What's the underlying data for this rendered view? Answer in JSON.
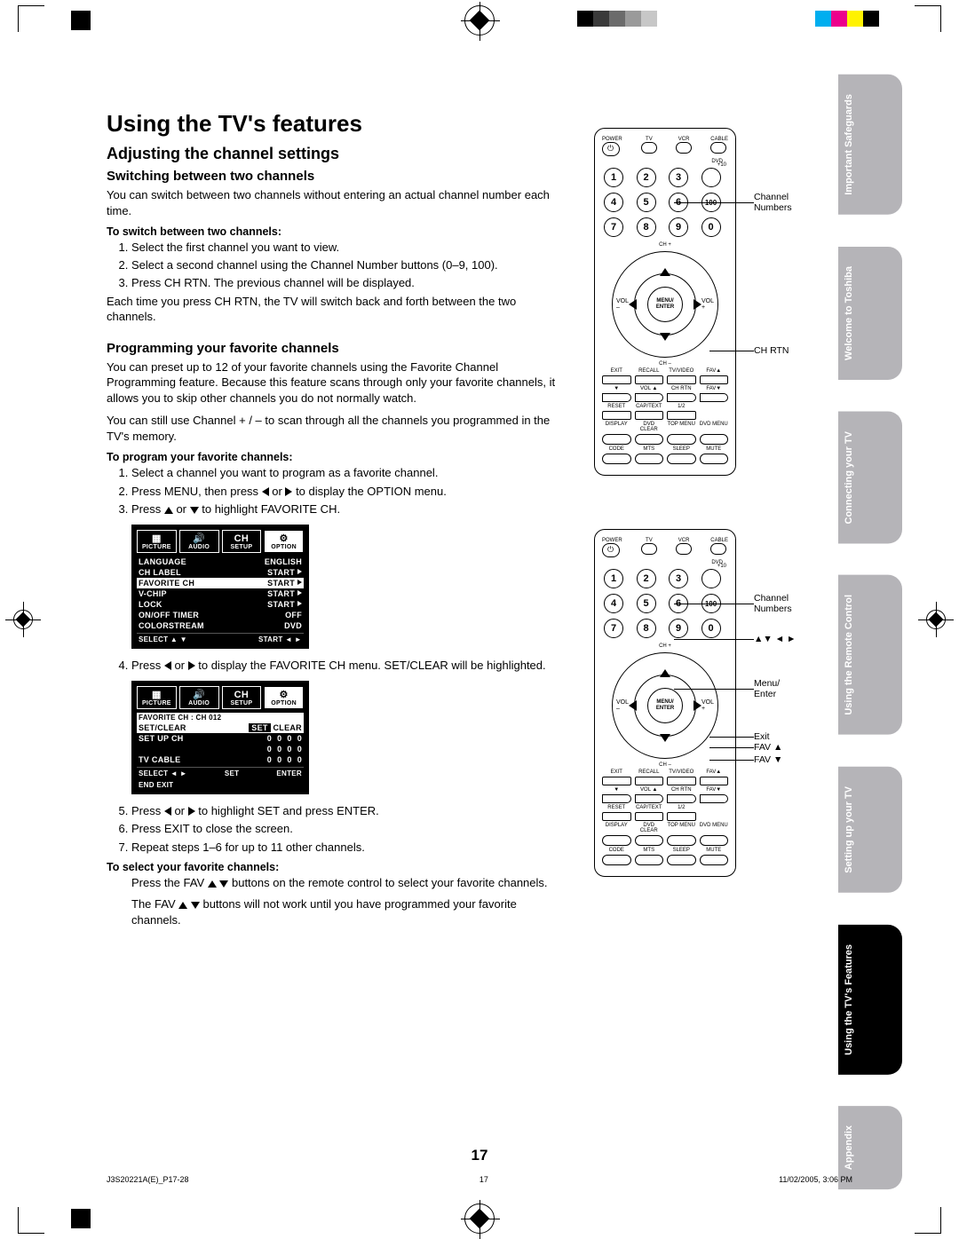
{
  "reg": {
    "colorbar": [
      "#00aeef",
      "#ec008c",
      "#fff200",
      "#000000"
    ],
    "halftone": [
      "#000000",
      "#3a3a3a",
      "#6b6b6b",
      "#9a9a9a",
      "#c7c7c7"
    ]
  },
  "page_number": "17",
  "footer": {
    "doc_id": "J3S20221A(E)_P17-28",
    "page": "17",
    "timestamp": "11/02/2005, 3:06 PM"
  },
  "heading_main": "Using the TV's features",
  "heading_adjust": "Adjusting the channel settings",
  "sec_switch": {
    "h3": "Switching between two channels",
    "intro": "You can switch between two channels without entering an actual channel number each time.",
    "lead": "To switch between two channels:",
    "steps": [
      "Select the first channel you want to view.",
      "Select a second channel using the Channel Number buttons (0–9, 100).",
      "Press CH RTN. The previous channel will be displayed."
    ],
    "outro": "Each time you press CH RTN, the TV will switch back and forth between the two channels."
  },
  "sec_fav": {
    "h3": "Programming your favorite channels",
    "p1": "You can preset up to 12 of your favorite channels using the Favorite Channel Programming feature. Because this feature scans through only your favorite channels, it allows you to skip other channels you do not normally watch.",
    "p2": "You can still use Channel + / – to scan through all the channels you programmed in the TV's memory.",
    "lead": "To program your favorite channels:",
    "step1": "Select a channel you want to program as a favorite channel.",
    "step2_a": "Press MENU, then press ",
    "step2_b": " or ",
    "step2_c": " to display the OPTION menu.",
    "step3_a": "Press ",
    "step3_b": " or ",
    "step3_c": " to highlight FAVORITE CH.",
    "step4_a": "Press ",
    "step4_b": " or ",
    "step4_c": " to display the FAVORITE CH menu. SET/CLEAR will be highlighted.",
    "step5_a": "Press ",
    "step5_b": " or ",
    "step5_c": " to highlight SET and press ENTER.",
    "step6": "Press EXIT to close the screen.",
    "step7": "Repeat steps 1–6 for up to 11 other channels.",
    "select_lead": "To select your favorite channels:",
    "select_p1_a": "Press the FAV ",
    "select_p1_b": " ",
    "select_p1_c": " buttons on the remote control to select your favorite channels.",
    "select_p2_a": "The FAV ",
    "select_p2_b": " ",
    "select_p2_c": " buttons will not work until you have programmed your favorite channels."
  },
  "osd1": {
    "tabs": [
      "PICTURE",
      "AUDIO",
      "SETUP",
      "OPTION"
    ],
    "active_tab": 3,
    "tab_option_label": "OPTION",
    "tab_option_mark": "CH",
    "rows": [
      {
        "l": "LANGUAGE",
        "r": "ENGLISH"
      },
      {
        "l": "CH LABEL",
        "r": "START",
        "arrow": true
      },
      {
        "l": "FAVORITE CH",
        "r": "START",
        "arrow": true,
        "hl": true
      },
      {
        "l": "V-CHIP",
        "r": "START",
        "arrow": true
      },
      {
        "l": "LOCK",
        "r": "START",
        "arrow": true
      },
      {
        "l": "ON/OFF TIMER",
        "r": "OFF"
      },
      {
        "l": "COLORSTREAM",
        "r": "DVD"
      }
    ],
    "foot_l": "SELECT  ▲ ▼",
    "foot_r": "START       ◄ ►"
  },
  "osd2": {
    "tabs": [
      "PICTURE",
      "AUDIO",
      "SETUP",
      "OPTION"
    ],
    "active_tab": 3,
    "title": "FAVORITE CH : CH 012",
    "row_hl_l": "SET/CLEAR",
    "row_hl_r": "SET CLEAR",
    "rows": [
      {
        "l": "SET UP CH",
        "c": [
          "0",
          "0",
          "0",
          "0"
        ]
      },
      {
        "l": "",
        "c": [
          "0",
          "0",
          "0",
          "0"
        ]
      },
      {
        "l": "TV CABLE",
        "c": [
          "0",
          "0",
          "0",
          "0"
        ]
      }
    ],
    "foot_l": "SELECT  ◄ ►",
    "foot_m": "SET",
    "foot_r": "ENTER",
    "foot_end": "END        EXIT"
  },
  "remote_labels": {
    "power": "POWER",
    "tv": "TV",
    "vcr": "VCR",
    "cable": "CABLE",
    "dvd": "DVD",
    "plus10": "+10",
    "menu_enter": "MENU/\nENTER",
    "vol": "VOL",
    "chp": "CH +",
    "chm": "CH –",
    "exit": "EXIT",
    "recall": "RECALL",
    "tvvideo": "TV/VIDEO",
    "favu": "FAV▲",
    "down": "▼",
    "volu": "VOL ▲",
    "chrtn": "CH RTN",
    "favd": "FAV▼",
    "reset": "RESET",
    "captext": "CAP/TEXT",
    "half": "1/2",
    "display": "DISPLAY",
    "dvdclear": "DVD CLEAR",
    "topmenu": "TOP MENU",
    "dvdmenu": "DVD MENU",
    "code": "CODE",
    "mts": "MTS",
    "sleep": "SLEEP",
    "mute": "MUTE"
  },
  "callouts1": {
    "ch_numbers": "Channel\nNumbers",
    "chrtn": "CH RTN"
  },
  "callouts2": {
    "ch_numbers": "Channel\nNumbers",
    "arrows": "▲▼ ◄ ►",
    "menu_enter": "Menu/\nEnter",
    "exit": "Exit",
    "favu": "FAV ▲",
    "favd": "FAV ▼"
  },
  "side_tabs": [
    {
      "l": "Important\nSafeguards",
      "active": false
    },
    {
      "l": "Welcome to\nToshiba",
      "active": false
    },
    {
      "l": "Connecting\nyour TV",
      "active": false
    },
    {
      "l": "Using the\nRemote Control",
      "active": false
    },
    {
      "l": "Setting up\nyour TV",
      "active": false
    },
    {
      "l": "Using the TV's\nFeatures",
      "active": true
    },
    {
      "l": "Appendix",
      "active": false
    }
  ]
}
